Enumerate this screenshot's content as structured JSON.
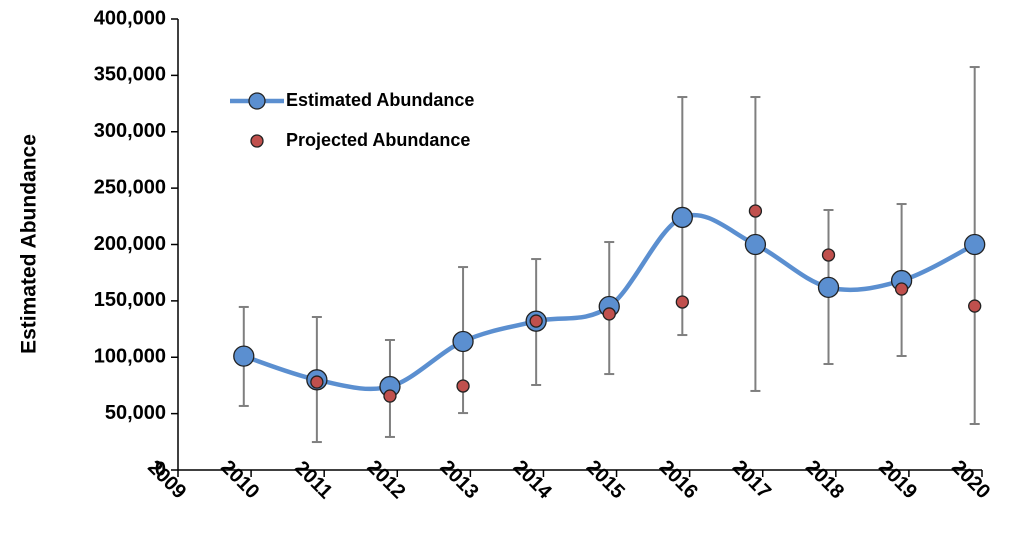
{
  "chart_data": {
    "type": "line",
    "y_label": "Estimated Abundance",
    "x": [
      2009.9,
      2010.9,
      2011.9,
      2012.9,
      2013.9,
      2014.9,
      2015.9,
      2016.9,
      2017.9,
      2018.9,
      2019.9
    ],
    "xlim": [
      2009,
      2020
    ],
    "xticks": [
      2009,
      2010,
      2011,
      2012,
      2013,
      2014,
      2015,
      2016,
      2017,
      2018,
      2019,
      2020
    ],
    "ylim": [
      0,
      400000
    ],
    "yticks": [
      {
        "value": 0,
        "label": "0"
      },
      {
        "value": 50000,
        "label": "50,000"
      },
      {
        "value": 100000,
        "label": "100,000"
      },
      {
        "value": 150000,
        "label": "150,000"
      },
      {
        "value": 200000,
        "label": "200,000"
      },
      {
        "value": 250000,
        "label": "250,000"
      },
      {
        "value": 300000,
        "label": "300,000"
      },
      {
        "value": 350000,
        "label": "350,000"
      },
      {
        "value": 400000,
        "label": "400,000"
      }
    ],
    "legend": "upper left",
    "series": [
      {
        "name": "Estimated Abundance",
        "color": "#5b8fd0",
        "mode": "line+markers",
        "smooth": true,
        "values": [
          101000,
          80000,
          74000,
          114000,
          132000,
          145000,
          224000,
          200000,
          162000,
          168000,
          200000
        ],
        "upper": [
          144600,
          135700,
          115300,
          180000,
          187100,
          202200,
          330800,
          330800,
          230600,
          235900,
          357400
        ],
        "lower": [
          56800,
          24800,
          29300,
          50500,
          75400,
          85100,
          119700,
          70100,
          94000,
          101100,
          40800
        ]
      },
      {
        "name": "Projected Abundance",
        "color": "#c0504d",
        "mode": "markers",
        "values": [
          null,
          78000,
          65600,
          74500,
          132100,
          138400,
          149000,
          229700,
          190700,
          160500,
          145400
        ]
      }
    ]
  }
}
